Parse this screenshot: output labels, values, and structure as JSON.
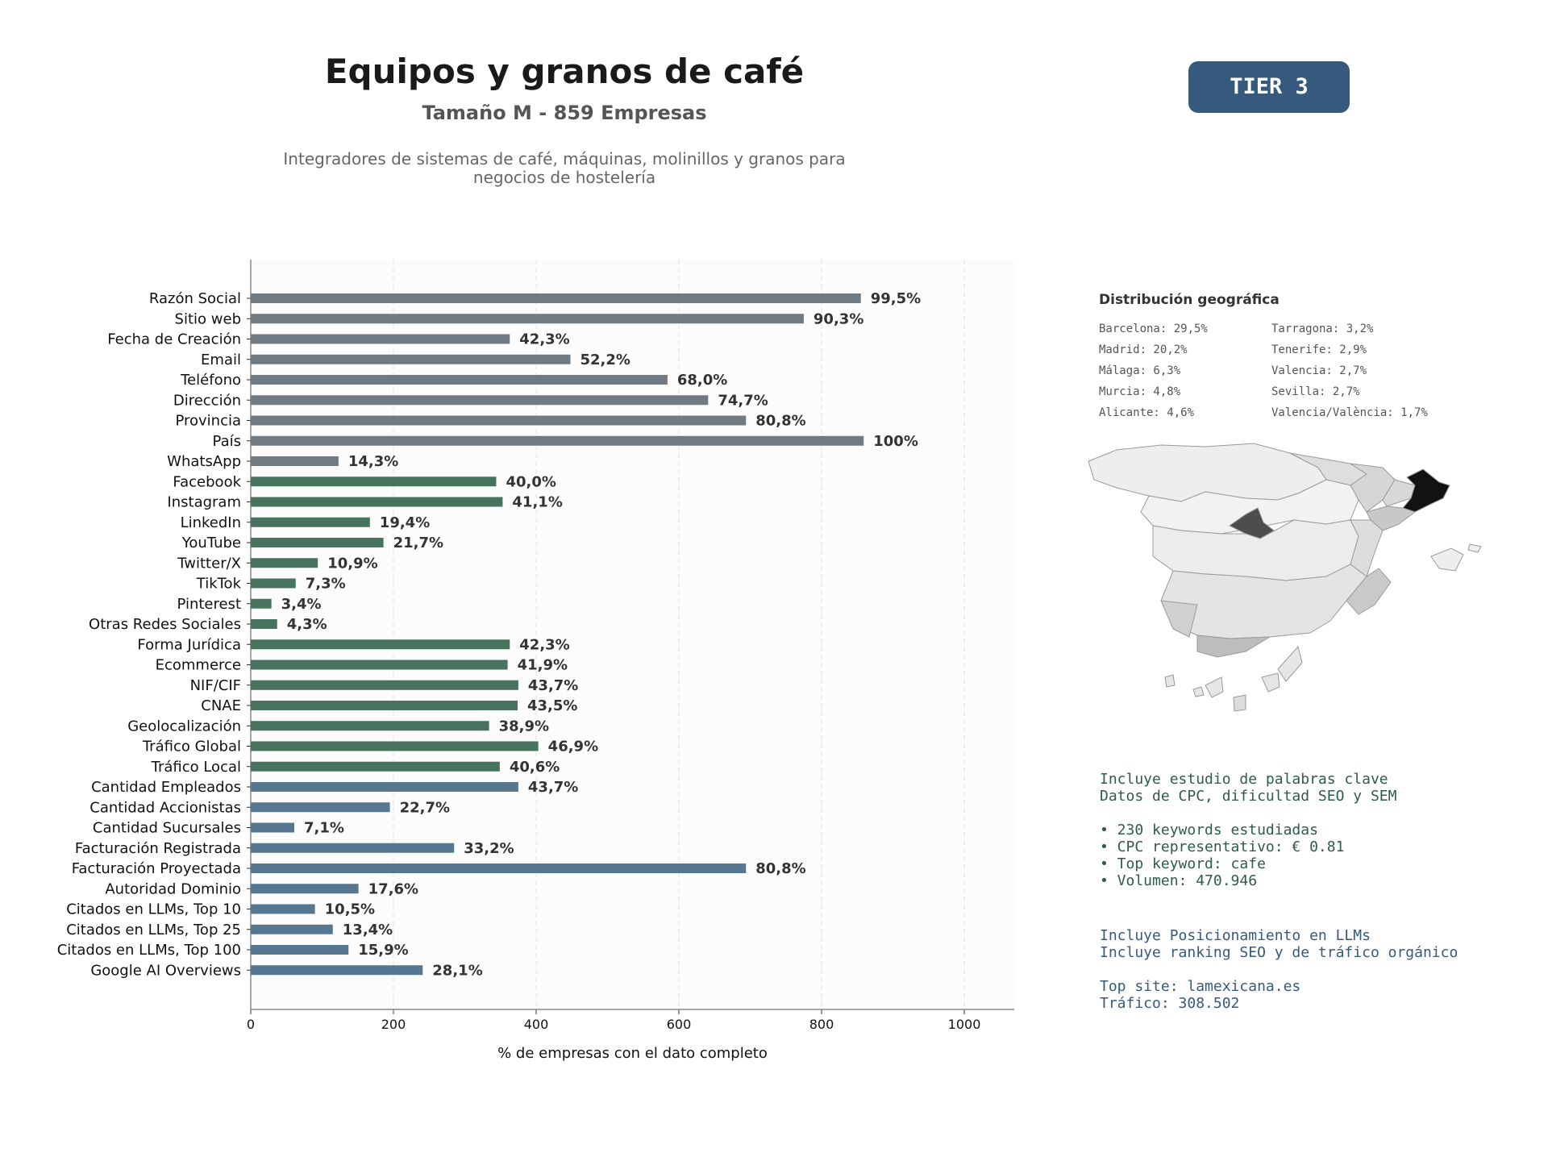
{
  "header": {
    "title": "Equipos y granos de café",
    "subtitle": "Tamaño M - 859 Empresas",
    "description": "Integradores de sistemas de café, máquinas, molinillos y granos para\nnegocios de hostelería",
    "tier": "TIER 3"
  },
  "chart_data": {
    "type": "bar",
    "orientation": "horizontal",
    "xlabel": "% de empresas con el dato completo",
    "xlim": [
      0,
      1070
    ],
    "xticks": [
      "0",
      "200",
      "400",
      "600",
      "800",
      "1000"
    ],
    "grid": "vertical dashed",
    "colors": {
      "identity": "#6f7a83",
      "social": "#47735f",
      "business": "#567792"
    },
    "categories": [
      "Razón Social",
      "Sitio web",
      "Fecha de Creación",
      "Email",
      "Teléfono",
      "Dirección",
      "Provincia",
      "País",
      "WhatsApp",
      "Facebook",
      "Instagram",
      "LinkedIn",
      "YouTube",
      "Twitter/X",
      "TikTok",
      "Pinterest",
      "Otras Redes Sociales",
      "Forma Jurídica",
      "Ecommerce",
      "NIF/CIF",
      "CNAE",
      "Geolocalización",
      "Tráfico Global",
      "Tráfico Local",
      "Cantidad Empleados",
      "Cantidad Accionistas",
      "Cantidad Sucursales",
      "Facturación Registrada",
      "Facturación Proyectada",
      "Autoridad Dominio",
      "Citados en LLMs, Top 10",
      "Citados en LLMs, Top 25",
      "Citados en LLMs, Top 100",
      "Google AI Overviews"
    ],
    "values": [
      855,
      775,
      363,
      448,
      584,
      641,
      694,
      859,
      123,
      344,
      353,
      167,
      186,
      94,
      63,
      29,
      37,
      363,
      360,
      375,
      374,
      334,
      403,
      349,
      375,
      195,
      61,
      285,
      694,
      151,
      90,
      115,
      137,
      241
    ],
    "labels": [
      "99,5%",
      "90,3%",
      "42,3%",
      "52,2%",
      "68,0%",
      "74,7%",
      "80,8%",
      "100%",
      "14,3%",
      "40,0%",
      "41,1%",
      "19,4%",
      "21,7%",
      "10,9%",
      "7,3%",
      "3,4%",
      "4,3%",
      "42,3%",
      "41,9%",
      "43,7%",
      "43,5%",
      "38,9%",
      "46,9%",
      "40,6%",
      "43,7%",
      "22,7%",
      "7,1%",
      "33,2%",
      "80,8%",
      "17,6%",
      "10,5%",
      "13,4%",
      "15,9%",
      "28,1%"
    ],
    "groups": [
      "identity",
      "identity",
      "identity",
      "identity",
      "identity",
      "identity",
      "identity",
      "identity",
      "identity",
      "social",
      "social",
      "social",
      "social",
      "social",
      "social",
      "social",
      "social",
      "social",
      "social",
      "social",
      "social",
      "social",
      "social",
      "social",
      "business",
      "business",
      "business",
      "business",
      "business",
      "business",
      "business",
      "business",
      "business",
      "business"
    ]
  },
  "geo": {
    "title": "Distribución geográfica",
    "left": [
      "Barcelona: 29,5%",
      "Madrid: 20,2%",
      "Málaga: 6,3%",
      "Murcia: 4,8%",
      "Alicante: 4,6%"
    ],
    "right": [
      "Tarragona: 3,2%",
      "Tenerife: 2,9%",
      "Valencia: 2,7%",
      "Sevilla: 2,7%",
      "Valencia/València: 1,7%"
    ]
  },
  "seo": {
    "lines": [
      "Incluye estudio de palabras clave",
      "Datos de CPC, dificultad SEO y SEM",
      "",
      "• 230 keywords estudiadas",
      "• CPC representativo: € 0.81",
      "• Top keyword: cafe",
      "• Volumen: 470.946"
    ]
  },
  "llm": {
    "lines": [
      "Incluye Posicionamiento en LLMs",
      "Incluye ranking SEO y de tráfico orgánico",
      "",
      "Top site: lamexicana.es",
      "Tráfico: 308.502"
    ]
  }
}
